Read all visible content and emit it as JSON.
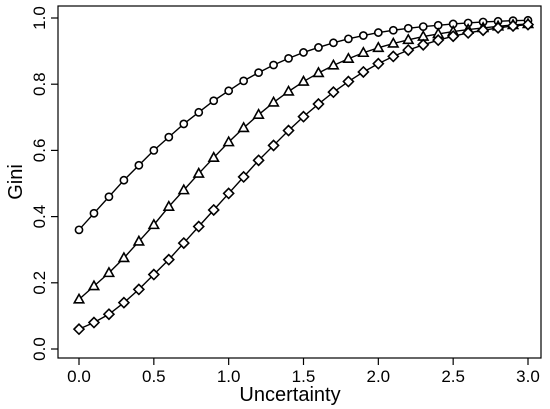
{
  "chart_data": {
    "type": "line",
    "title": "",
    "xlabel": "Uncertainty",
    "ylabel": "Gini",
    "xlim": [
      0,
      3
    ],
    "ylim": [
      0,
      1
    ],
    "xticks": [
      0,
      0.5,
      1,
      1.5,
      2,
      2.5,
      3
    ],
    "xtick_labels": [
      "0.0",
      "0.5",
      "1.0",
      "1.5",
      "2.0",
      "2.5",
      "3.0"
    ],
    "yticks": [
      0,
      0.2,
      0.4,
      0.6,
      0.8,
      1
    ],
    "ytick_labels": [
      "0.0",
      "0.2",
      "0.4",
      "0.6",
      "0.8",
      "1.0"
    ],
    "grid": false,
    "legend": "none",
    "x": [
      0,
      0.1,
      0.2,
      0.3,
      0.4,
      0.5,
      0.6,
      0.7,
      0.8,
      0.9,
      1,
      1.1,
      1.2,
      1.3,
      1.4,
      1.5,
      1.6,
      1.7,
      1.8,
      1.9,
      2,
      2.1,
      2.2,
      2.3,
      2.4,
      2.5,
      2.6,
      2.7,
      2.8,
      2.9,
      3
    ],
    "series": [
      {
        "marker": "circle",
        "line_width": "thick",
        "values": [
          0.36,
          0.41,
          0.46,
          0.51,
          0.555,
          0.6,
          0.64,
          0.68,
          0.715,
          0.75,
          0.78,
          0.81,
          0.835,
          0.858,
          0.878,
          0.896,
          0.911,
          0.925,
          0.937,
          0.947,
          0.956,
          0.963,
          0.969,
          0.974,
          0.978,
          0.982,
          0.985,
          0.988,
          0.99,
          0.992,
          0.993
        ]
      },
      {
        "marker": "triangle",
        "line_width": "thin",
        "values": [
          0.15,
          0.19,
          0.23,
          0.275,
          0.325,
          0.375,
          0.43,
          0.48,
          0.53,
          0.578,
          0.625,
          0.668,
          0.708,
          0.745,
          0.778,
          0.808,
          0.834,
          0.857,
          0.877,
          0.895,
          0.91,
          0.923,
          0.934,
          0.944,
          0.952,
          0.959,
          0.965,
          0.97,
          0.975,
          0.979,
          0.982
        ]
      },
      {
        "marker": "diamond",
        "line_width": "thin",
        "values": [
          0.06,
          0.08,
          0.105,
          0.14,
          0.18,
          0.225,
          0.27,
          0.32,
          0.37,
          0.42,
          0.47,
          0.52,
          0.57,
          0.615,
          0.66,
          0.702,
          0.74,
          0.776,
          0.808,
          0.837,
          0.862,
          0.884,
          0.903,
          0.919,
          0.933,
          0.945,
          0.955,
          0.963,
          0.97,
          0.976,
          0.98
        ]
      }
    ]
  }
}
